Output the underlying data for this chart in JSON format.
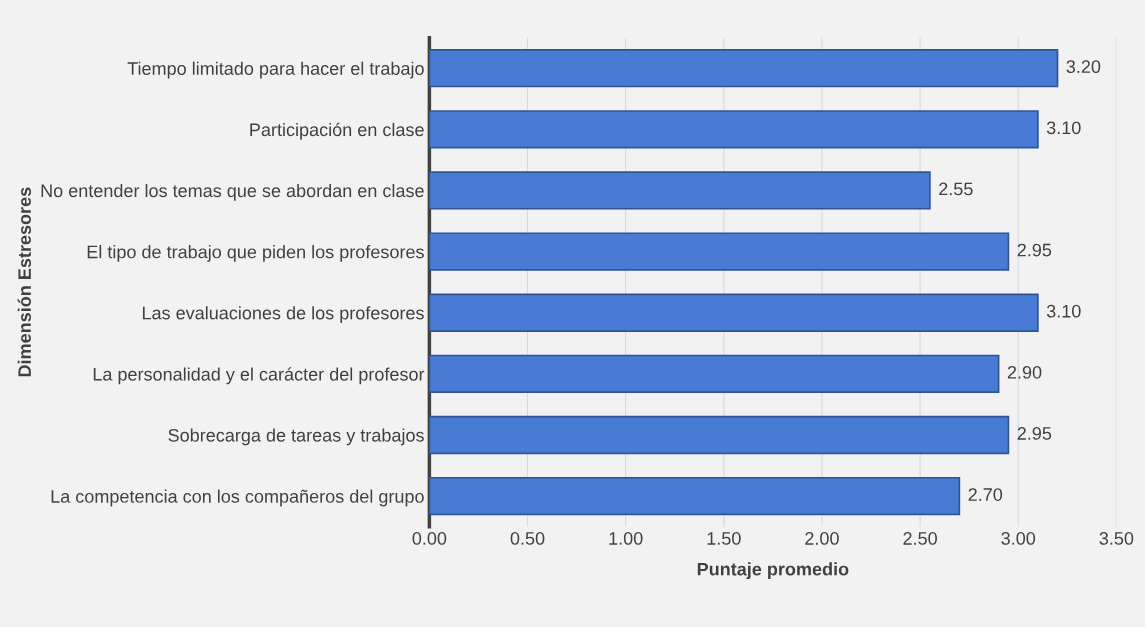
{
  "chart_data": {
    "type": "bar",
    "orientation": "horizontal",
    "xlabel": "Puntaje promedio",
    "ylabel": "Dimensión Estresores",
    "categories": [
      "Tiempo limitado para hacer el trabajo",
      "Participación en clase",
      "No entender los temas que se abordan en clase",
      "El tipo de trabajo que piden los profesores",
      "Las evaluaciones de los profesores",
      "La personalidad y el carácter del profesor",
      "Sobrecarga de tareas y trabajos",
      "La competencia con los compañeros del grupo"
    ],
    "values": [
      3.2,
      3.1,
      2.55,
      2.95,
      3.1,
      2.9,
      2.95,
      2.7
    ],
    "value_labels": [
      "3.20",
      "3.10",
      "2.55",
      "2.95",
      "3.10",
      "2.90",
      "2.95",
      "2.70"
    ],
    "color": "#4a7bd4",
    "xlim": [
      0,
      3.5
    ],
    "xticks": [
      {
        "value": 0,
        "label": "0.00"
      },
      {
        "value": 0.5,
        "label": "0.50"
      },
      {
        "value": 1,
        "label": "1.00"
      },
      {
        "value": 1.5,
        "label": "1.50"
      },
      {
        "value": 2,
        "label": "2.00"
      },
      {
        "value": 2.5,
        "label": "2.50"
      },
      {
        "value": 3,
        "label": "3.00"
      },
      {
        "value": 3.5,
        "label": "3.50"
      }
    ],
    "grid": "x"
  }
}
